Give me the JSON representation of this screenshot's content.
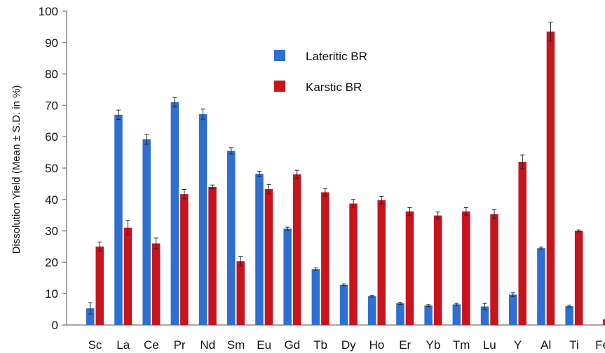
{
  "chart_data": {
    "type": "bar",
    "title": "",
    "xlabel": "",
    "ylabel": "Dissolution Yield (Mean ± S.D. in %)",
    "ylim": [
      0,
      100
    ],
    "yticks": [
      0,
      10,
      20,
      30,
      40,
      50,
      60,
      70,
      80,
      90,
      100
    ],
    "grid": false,
    "legend_position": "top-center",
    "categories": [
      "Sc",
      "La",
      "Ce",
      "Pr",
      "Nd",
      "Sm",
      "Eu",
      "Gd",
      "Tb",
      "Dy",
      "Ho",
      "Er",
      "Yb",
      "Tm",
      "Lu",
      "Y",
      "Al",
      "Ti",
      "Fe"
    ],
    "series": [
      {
        "name": "Lateritic BR",
        "color": "#2e6fd0",
        "values": [
          5.3,
          67,
          59.2,
          71,
          67.2,
          55.5,
          48.2,
          30.7,
          17.8,
          12.8,
          9.2,
          6.9,
          6.2,
          6.6,
          5.9,
          9.7,
          24.5,
          6.0,
          0
        ],
        "errors": [
          1.8,
          1.5,
          1.6,
          1.5,
          1.6,
          1.0,
          0.8,
          0.5,
          0.4,
          0.3,
          0.3,
          0.3,
          0.3,
          0.3,
          1.0,
          0.6,
          0.3,
          0.3,
          0
        ]
      },
      {
        "name": "Karstic BR",
        "color": "#c8141d",
        "values": [
          25,
          31,
          26,
          41.7,
          44,
          20.3,
          43.3,
          48,
          42.3,
          38.7,
          39.8,
          36.2,
          34.9,
          36.2,
          35.3,
          52,
          93.5,
          30,
          1.8
        ],
        "errors": [
          1.4,
          2.3,
          1.7,
          1.5,
          0.6,
          1.5,
          1.5,
          1.3,
          1.2,
          1.3,
          1.2,
          1.2,
          1.1,
          1.2,
          1.4,
          2.2,
          3.0,
          0.3,
          0
        ]
      }
    ]
  }
}
